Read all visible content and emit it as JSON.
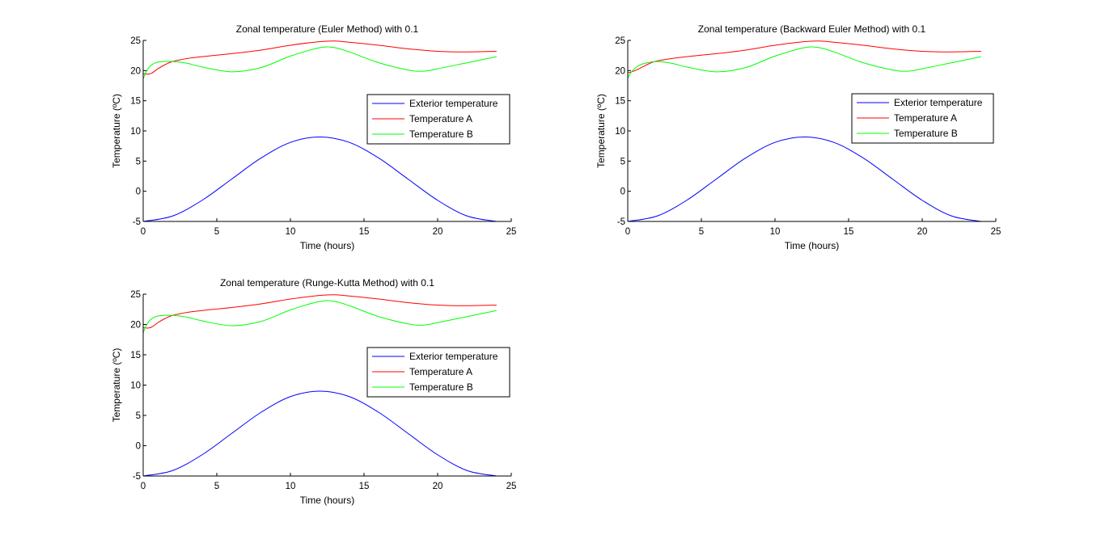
{
  "figure": {
    "background": "#ffffff"
  },
  "chart_data": [
    {
      "type": "line",
      "title": "Zonal temperature (Euler Method) with 0.1",
      "xlabel": "Time (hours)",
      "ylabel": "Temperature (ºC)",
      "xlim": [
        0,
        25
      ],
      "ylim": [
        -5,
        25
      ],
      "xticks": [
        0,
        5,
        10,
        15,
        20,
        25
      ],
      "yticks": [
        -5,
        0,
        5,
        10,
        15,
        20,
        25
      ],
      "grid": false,
      "legend_position": "right",
      "series": [
        {
          "name": "Exterior temperature",
          "color": "#0000ff",
          "x": [
            0,
            2,
            4,
            6,
            8,
            10,
            12,
            14,
            16,
            18,
            20,
            22,
            24
          ],
          "y": [
            -5,
            -4.1,
            -1.5,
            2,
            5.5,
            8.1,
            9,
            8.1,
            5.5,
            2,
            -1.5,
            -4.1,
            -5
          ]
        },
        {
          "name": "Temperature A",
          "color": "#ff0000",
          "x": [
            0,
            0.3,
            0.6,
            1,
            1.5,
            2,
            3,
            4,
            6,
            8,
            10,
            12,
            13,
            14,
            16,
            18,
            20,
            22,
            24
          ],
          "y": [
            19.5,
            19.4,
            19.6,
            20.3,
            21.0,
            21.5,
            22.0,
            22.3,
            22.8,
            23.4,
            24.2,
            24.8,
            24.9,
            24.7,
            24.2,
            23.6,
            23.2,
            23.1,
            23.2
          ]
        },
        {
          "name": "Temperature B",
          "color": "#00ff00",
          "x": [
            0,
            0.2,
            0.5,
            1,
            2,
            3,
            4,
            6,
            8,
            10,
            12,
            13,
            14,
            16,
            18,
            19,
            20,
            22,
            24
          ],
          "y": [
            18.6,
            19.8,
            20.8,
            21.4,
            21.5,
            21.2,
            20.6,
            19.8,
            20.5,
            22.4,
            23.8,
            23.8,
            23.1,
            21.3,
            20.1,
            19.9,
            20.3,
            21.3,
            22.3
          ]
        }
      ]
    },
    {
      "type": "line",
      "title": "Zonal temperature (Backward Euler Method) with 0.1",
      "xlabel": "Time (hours)",
      "ylabel": "Temperature (ºC)",
      "xlim": [
        0,
        25
      ],
      "ylim": [
        -5,
        25
      ],
      "xticks": [
        0,
        5,
        10,
        15,
        20,
        25
      ],
      "yticks": [
        -5,
        0,
        5,
        10,
        15,
        20,
        25
      ],
      "grid": false,
      "legend_position": "right",
      "series": [
        {
          "name": "Exterior temperature",
          "color": "#0000ff",
          "x": [
            0,
            2,
            4,
            6,
            8,
            10,
            12,
            14,
            16,
            18,
            20,
            22,
            24
          ],
          "y": [
            -5,
            -4.1,
            -1.5,
            2,
            5.5,
            8.1,
            9,
            8.1,
            5.5,
            2,
            -1.5,
            -4.1,
            -5
          ]
        },
        {
          "name": "Temperature A",
          "color": "#ff0000",
          "x": [
            0,
            0.5,
            1,
            1.5,
            2,
            3,
            4,
            6,
            8,
            10,
            12,
            13,
            14,
            16,
            18,
            20,
            22,
            24
          ],
          "y": [
            19.6,
            20.0,
            20.6,
            21.2,
            21.6,
            22.0,
            22.3,
            22.8,
            23.4,
            24.2,
            24.8,
            24.9,
            24.7,
            24.2,
            23.6,
            23.2,
            23.1,
            23.2
          ]
        },
        {
          "name": "Temperature B",
          "color": "#00ff00",
          "x": [
            0,
            0.2,
            0.5,
            1,
            2,
            3,
            4,
            6,
            8,
            10,
            12,
            13,
            14,
            16,
            18,
            19,
            20,
            22,
            24
          ],
          "y": [
            18.7,
            19.6,
            20.4,
            21.1,
            21.5,
            21.2,
            20.6,
            19.8,
            20.5,
            22.4,
            23.8,
            23.8,
            23.1,
            21.3,
            20.1,
            19.9,
            20.3,
            21.3,
            22.3
          ]
        }
      ]
    },
    {
      "type": "line",
      "title": "Zonal temperature (Runge-Kutta Method) with 0.1",
      "xlabel": "Time (hours)",
      "ylabel": "Temperature (ºC)",
      "xlim": [
        0,
        25
      ],
      "ylim": [
        -5,
        25
      ],
      "xticks": [
        0,
        5,
        10,
        15,
        20,
        25
      ],
      "yticks": [
        -5,
        0,
        5,
        10,
        15,
        20,
        25
      ],
      "grid": false,
      "legend_position": "right",
      "series": [
        {
          "name": "Exterior temperature",
          "color": "#0000ff",
          "x": [
            0,
            2,
            4,
            6,
            8,
            10,
            12,
            14,
            16,
            18,
            20,
            22,
            24
          ],
          "y": [
            -5,
            -4.1,
            -1.5,
            2,
            5.5,
            8.1,
            9,
            8.1,
            5.5,
            2,
            -1.5,
            -4.1,
            -5
          ]
        },
        {
          "name": "Temperature A",
          "color": "#ff0000",
          "x": [
            0,
            0.3,
            0.6,
            1,
            1.5,
            2,
            3,
            4,
            6,
            8,
            10,
            12,
            13,
            14,
            16,
            18,
            20,
            22,
            24
          ],
          "y": [
            19.5,
            19.4,
            19.6,
            20.3,
            21.0,
            21.5,
            22.0,
            22.3,
            22.8,
            23.4,
            24.2,
            24.8,
            24.9,
            24.7,
            24.2,
            23.6,
            23.2,
            23.1,
            23.2
          ]
        },
        {
          "name": "Temperature B",
          "color": "#00ff00",
          "x": [
            0,
            0.2,
            0.5,
            1,
            2,
            3,
            4,
            6,
            8,
            10,
            12,
            13,
            14,
            16,
            18,
            19,
            20,
            22,
            24
          ],
          "y": [
            18.6,
            19.8,
            20.8,
            21.4,
            21.5,
            21.2,
            20.6,
            19.8,
            20.5,
            22.4,
            23.8,
            23.8,
            23.1,
            21.3,
            20.1,
            19.9,
            20.3,
            21.3,
            22.3
          ]
        }
      ]
    }
  ]
}
